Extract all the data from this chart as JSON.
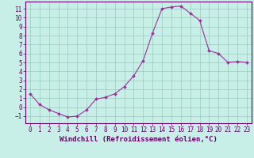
{
  "x": [
    0,
    1,
    2,
    3,
    4,
    5,
    6,
    7,
    8,
    9,
    10,
    11,
    12,
    13,
    14,
    15,
    16,
    17,
    18,
    19,
    20,
    21,
    22,
    23
  ],
  "y": [
    1.5,
    0.3,
    -0.3,
    -0.7,
    -1.1,
    -1.0,
    -0.3,
    0.9,
    1.1,
    1.5,
    2.3,
    3.5,
    5.2,
    8.3,
    11.0,
    11.2,
    11.3,
    10.5,
    9.7,
    6.3,
    6.0,
    5.0,
    5.1,
    5.0
  ],
  "line_color": "#993399",
  "marker": "D",
  "marker_size": 2,
  "bg_color": "#c8eee8",
  "grid_color": "#99ccbb",
  "xlabel": "Windchill (Refroidissement éolien,°C)",
  "ylabel": "",
  "ylim": [
    -1.8,
    11.8
  ],
  "xlim": [
    -0.5,
    23.5
  ],
  "yticks": [
    -1,
    0,
    1,
    2,
    3,
    4,
    5,
    6,
    7,
    8,
    9,
    10,
    11
  ],
  "xticks": [
    0,
    1,
    2,
    3,
    4,
    5,
    6,
    7,
    8,
    9,
    10,
    11,
    12,
    13,
    14,
    15,
    16,
    17,
    18,
    19,
    20,
    21,
    22,
    23
  ],
  "tick_fontsize": 5.5,
  "xlabel_fontsize": 6.5,
  "label_color": "#660066",
  "axis_color": "#660066",
  "spine_color": "#660066"
}
